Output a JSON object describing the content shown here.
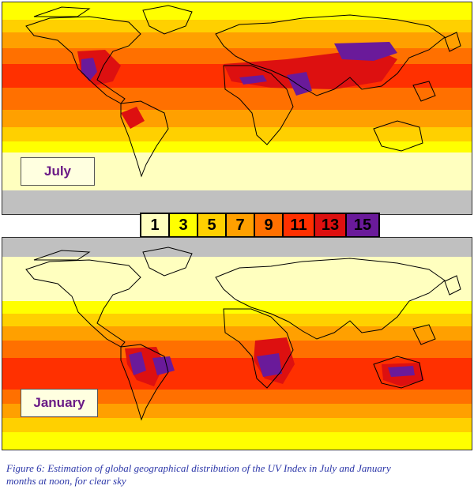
{
  "scale_colors": {
    "1": "#ffffbf",
    "3": "#ffff00",
    "5": "#ffd000",
    "7": "#ffa000",
    "9": "#ff7000",
    "11": "#ff3000",
    "13": "#dd1010",
    "15": "#6a1a9a",
    "no_data": "#c0c0c0"
  },
  "legend": [
    "1",
    "3",
    "5",
    "7",
    "9",
    "11",
    "13",
    "15"
  ],
  "maps": {
    "july": {
      "label": "July"
    },
    "january": {
      "label": "January"
    }
  },
  "caption": {
    "line1": "Figure 6: Estimation of global geographical distribution of the UV Index in July and  January",
    "line2": "months at noon, for clear sky"
  }
}
